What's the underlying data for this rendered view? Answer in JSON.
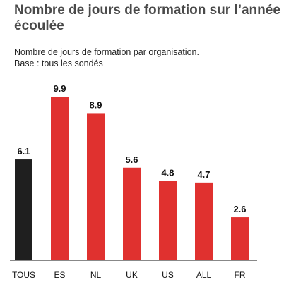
{
  "header": {
    "title": "Nombre de jours de formation sur l’année écoulée",
    "subtitle": "Nombre de jours de formation par organisation.",
    "base": "Base : tous les sondés"
  },
  "colors": {
    "highlight": "#1f1f1f",
    "bars": "#e0312f",
    "axis": "#888888"
  },
  "chart_data": {
    "type": "bar",
    "title": "Nombre de jours de formation sur l’année écoulée",
    "subtitle": "Nombre de jours de formation par organisation.",
    "note": "Base : tous les sondés",
    "categories": [
      "TOUS",
      "ES",
      "NL",
      "UK",
      "US",
      "ALL",
      "FR"
    ],
    "values": [
      6.1,
      9.9,
      8.9,
      5.6,
      4.8,
      4.7,
      2.6
    ],
    "value_labels": [
      "6.1",
      "9.9",
      "8.9",
      "5.6",
      "4.8",
      "4.7",
      "2.6"
    ],
    "highlight_category": "TOUS",
    "xlabel": "",
    "ylabel": "",
    "ylim": [
      0,
      9.9
    ],
    "grid": false,
    "legend": "none"
  }
}
